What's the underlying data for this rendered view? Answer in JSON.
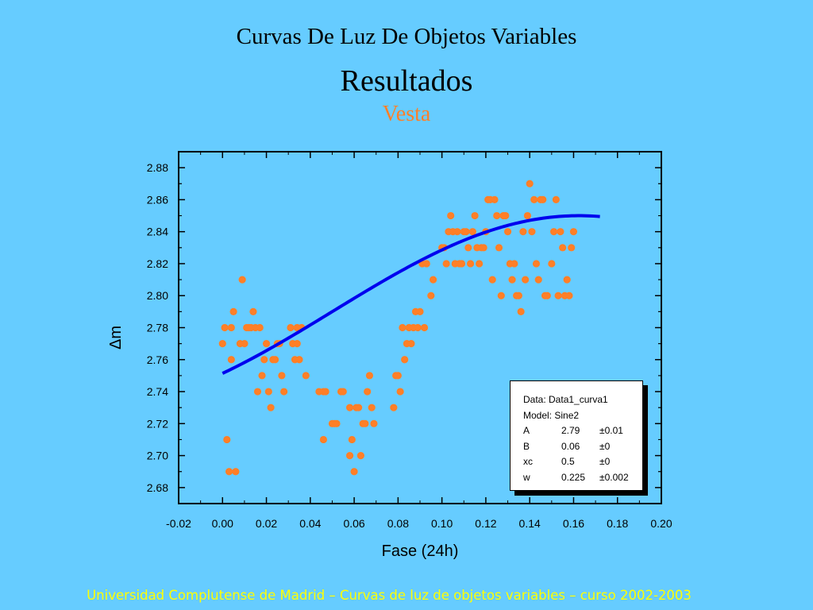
{
  "slide": {
    "title": "Curvas De Luz De Objetos Variables",
    "subtitle": "Resultados",
    "object_name": "Vesta",
    "footer": "Universidad Complutense de Madrid – Curvas de luz de objetos variables  – curso 2002-2003"
  },
  "colors": {
    "background": "#66ccff",
    "points": "#ff7f27",
    "fit_curve": "#0000ee",
    "footer_text": "#ffff00"
  },
  "legend": {
    "data_line": "Data: Data1_curva1",
    "model_line": "Model: Sine2",
    "params": [
      {
        "name": "A",
        "value": "2.79",
        "error": "±0.01"
      },
      {
        "name": "B",
        "value": "0.06",
        "error": "±0"
      },
      {
        "name": "xc",
        "value": "0.5",
        "error": "±0"
      },
      {
        "name": "w",
        "value": "0.225",
        "error": "±0.002"
      }
    ]
  },
  "chart_data": {
    "type": "scatter",
    "xlabel": "Fase (24h)",
    "ylabel": "Δm",
    "xlim": [
      -0.02,
      0.2
    ],
    "ylim": [
      2.67,
      2.89
    ],
    "x_ticks": [
      "-0.02",
      "0.00",
      "0.02",
      "0.04",
      "0.06",
      "0.08",
      "0.10",
      "0.12",
      "0.14",
      "0.16",
      "0.18",
      "0.20"
    ],
    "y_ticks": [
      "2.68",
      "2.70",
      "2.72",
      "2.74",
      "2.76",
      "2.78",
      "2.80",
      "2.82",
      "2.84",
      "2.86",
      "2.88"
    ],
    "grid": false,
    "series": [
      {
        "type": "scatter",
        "points": [
          [
            0.0,
            2.77
          ],
          [
            0.001,
            2.78
          ],
          [
            0.002,
            2.71
          ],
          [
            0.003,
            2.69
          ],
          [
            0.004,
            2.76
          ],
          [
            0.004,
            2.78
          ],
          [
            0.005,
            2.79
          ],
          [
            0.006,
            2.69
          ],
          [
            0.008,
            2.77
          ],
          [
            0.009,
            2.81
          ],
          [
            0.01,
            2.77
          ],
          [
            0.011,
            2.78
          ],
          [
            0.012,
            2.78
          ],
          [
            0.013,
            2.78
          ],
          [
            0.014,
            2.79
          ],
          [
            0.015,
            2.78
          ],
          [
            0.016,
            2.74
          ],
          [
            0.017,
            2.78
          ],
          [
            0.018,
            2.75
          ],
          [
            0.019,
            2.76
          ],
          [
            0.02,
            2.77
          ],
          [
            0.021,
            2.74
          ],
          [
            0.022,
            2.73
          ],
          [
            0.023,
            2.76
          ],
          [
            0.024,
            2.76
          ],
          [
            0.025,
            2.77
          ],
          [
            0.026,
            2.77
          ],
          [
            0.027,
            2.75
          ],
          [
            0.028,
            2.74
          ],
          [
            0.031,
            2.78
          ],
          [
            0.032,
            2.77
          ],
          [
            0.033,
            2.76
          ],
          [
            0.034,
            2.77
          ],
          [
            0.034,
            2.78
          ],
          [
            0.035,
            2.76
          ],
          [
            0.036,
            2.78
          ],
          [
            0.038,
            2.75
          ],
          [
            0.044,
            2.74
          ],
          [
            0.046,
            2.71
          ],
          [
            0.046,
            2.74
          ],
          [
            0.047,
            2.74
          ],
          [
            0.05,
            2.72
          ],
          [
            0.051,
            2.72
          ],
          [
            0.052,
            2.72
          ],
          [
            0.054,
            2.74
          ],
          [
            0.055,
            2.74
          ],
          [
            0.058,
            2.7
          ],
          [
            0.058,
            2.73
          ],
          [
            0.059,
            2.71
          ],
          [
            0.06,
            2.69
          ],
          [
            0.061,
            2.73
          ],
          [
            0.062,
            2.73
          ],
          [
            0.063,
            2.7
          ],
          [
            0.064,
            2.72
          ],
          [
            0.065,
            2.72
          ],
          [
            0.066,
            2.74
          ],
          [
            0.067,
            2.75
          ],
          [
            0.068,
            2.73
          ],
          [
            0.069,
            2.72
          ],
          [
            0.078,
            2.73
          ],
          [
            0.079,
            2.75
          ],
          [
            0.08,
            2.75
          ],
          [
            0.081,
            2.74
          ],
          [
            0.082,
            2.78
          ],
          [
            0.083,
            2.76
          ],
          [
            0.084,
            2.77
          ],
          [
            0.085,
            2.78
          ],
          [
            0.086,
            2.77
          ],
          [
            0.087,
            2.78
          ],
          [
            0.088,
            2.79
          ],
          [
            0.089,
            2.78
          ],
          [
            0.09,
            2.79
          ],
          [
            0.091,
            2.82
          ],
          [
            0.092,
            2.78
          ],
          [
            0.093,
            2.82
          ],
          [
            0.095,
            2.8
          ],
          [
            0.096,
            2.81
          ],
          [
            0.1,
            2.83
          ],
          [
            0.101,
            2.83
          ],
          [
            0.102,
            2.82
          ],
          [
            0.103,
            2.84
          ],
          [
            0.104,
            2.85
          ],
          [
            0.105,
            2.84
          ],
          [
            0.106,
            2.82
          ],
          [
            0.107,
            2.84
          ],
          [
            0.108,
            2.82
          ],
          [
            0.109,
            2.82
          ],
          [
            0.11,
            2.84
          ],
          [
            0.111,
            2.84
          ],
          [
            0.112,
            2.83
          ],
          [
            0.113,
            2.82
          ],
          [
            0.114,
            2.84
          ],
          [
            0.115,
            2.85
          ],
          [
            0.116,
            2.83
          ],
          [
            0.117,
            2.82
          ],
          [
            0.118,
            2.83
          ],
          [
            0.119,
            2.83
          ],
          [
            0.12,
            2.84
          ],
          [
            0.121,
            2.86
          ],
          [
            0.122,
            2.86
          ],
          [
            0.123,
            2.81
          ],
          [
            0.124,
            2.86
          ],
          [
            0.125,
            2.85
          ],
          [
            0.126,
            2.83
          ],
          [
            0.127,
            2.8
          ],
          [
            0.128,
            2.85
          ],
          [
            0.129,
            2.85
          ],
          [
            0.13,
            2.84
          ],
          [
            0.131,
            2.82
          ],
          [
            0.132,
            2.81
          ],
          [
            0.133,
            2.82
          ],
          [
            0.134,
            2.8
          ],
          [
            0.135,
            2.8
          ],
          [
            0.136,
            2.79
          ],
          [
            0.137,
            2.84
          ],
          [
            0.138,
            2.81
          ],
          [
            0.139,
            2.85
          ],
          [
            0.14,
            2.87
          ],
          [
            0.141,
            2.84
          ],
          [
            0.142,
            2.86
          ],
          [
            0.143,
            2.82
          ],
          [
            0.144,
            2.81
          ],
          [
            0.145,
            2.86
          ],
          [
            0.146,
            2.86
          ],
          [
            0.147,
            2.8
          ],
          [
            0.148,
            2.8
          ],
          [
            0.15,
            2.82
          ],
          [
            0.151,
            2.84
          ],
          [
            0.152,
            2.86
          ],
          [
            0.153,
            2.8
          ],
          [
            0.154,
            2.84
          ],
          [
            0.155,
            2.83
          ],
          [
            0.156,
            2.8
          ],
          [
            0.157,
            2.81
          ],
          [
            0.158,
            2.8
          ],
          [
            0.159,
            2.83
          ],
          [
            0.16,
            2.84
          ]
        ]
      },
      {
        "type": "line",
        "name": "Sine2",
        "function": "y = A + B*sin(pi*(x - xc)/w)",
        "A": 2.79,
        "B": 0.06,
        "xc": 0.5,
        "w": 0.225,
        "x_range": [
          0.0,
          0.172
        ]
      }
    ]
  }
}
